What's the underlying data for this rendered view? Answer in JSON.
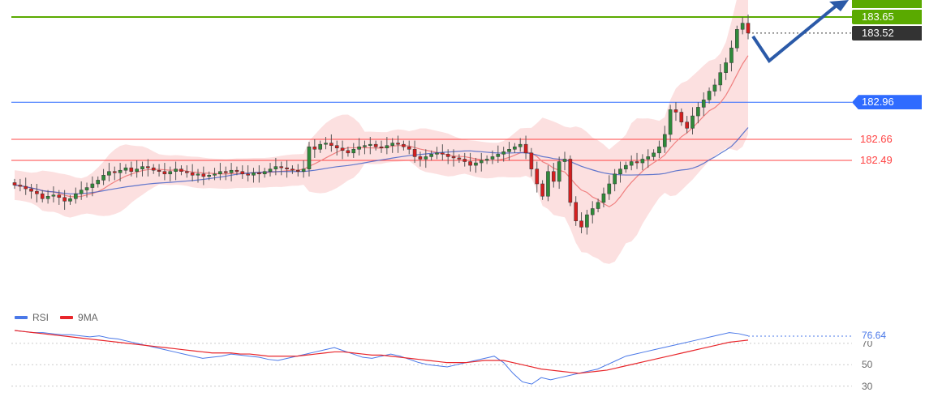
{
  "chart_data": [
    {
      "type": "candlestick",
      "title": "",
      "y_range": [
        181.0,
        183.75
      ],
      "levels": [
        {
          "name": "resistance",
          "value": 183.65,
          "label": "183.65",
          "color": "#5aaa00"
        },
        {
          "name": "current",
          "value": 183.52,
          "label": "183.52",
          "color": "#333333"
        },
        {
          "name": "pivot",
          "value": 182.96,
          "label": "182.96",
          "color": "#2f6bff"
        },
        {
          "name": "support1",
          "value": 182.66,
          "label": "182.66",
          "color": "#ff4444"
        },
        {
          "name": "support2",
          "value": 182.49,
          "label": "182.49",
          "color": "#ff4444"
        }
      ],
      "close_series": [
        182.29,
        182.28,
        182.26,
        182.24,
        182.22,
        182.18,
        182.2,
        182.21,
        182.19,
        182.16,
        182.18,
        182.22,
        182.25,
        182.27,
        182.3,
        182.33,
        182.37,
        182.4,
        182.39,
        182.41,
        182.43,
        182.4,
        182.42,
        182.44,
        182.43,
        182.41,
        182.4,
        182.38,
        182.4,
        182.42,
        182.4,
        182.39,
        182.37,
        182.38,
        182.36,
        182.37,
        182.38,
        182.4,
        182.39,
        182.41,
        182.4,
        182.38,
        182.37,
        182.39,
        182.38,
        182.4,
        182.42,
        182.44,
        182.43,
        182.42,
        182.41,
        182.4,
        182.42,
        182.6,
        182.58,
        182.62,
        182.63,
        182.61,
        182.59,
        182.57,
        182.55,
        182.58,
        182.6,
        182.61,
        182.62,
        182.6,
        182.59,
        182.61,
        182.63,
        182.62,
        182.6,
        182.58,
        182.52,
        182.5,
        182.52,
        182.54,
        182.55,
        182.54,
        182.52,
        182.51,
        182.5,
        182.48,
        182.45,
        182.47,
        182.49,
        182.5,
        182.52,
        182.54,
        182.56,
        182.58,
        182.6,
        182.62,
        182.55,
        182.42,
        182.3,
        182.2,
        182.4,
        182.32,
        182.48,
        182.5,
        182.15,
        182.0,
        181.95,
        182.05,
        182.1,
        182.15,
        182.22,
        182.3,
        182.38,
        182.42,
        182.45,
        182.48,
        182.47,
        182.5,
        182.52,
        182.55,
        182.6,
        182.7,
        182.9,
        182.88,
        182.8,
        182.75,
        182.85,
        182.92,
        182.98,
        183.05,
        183.1,
        183.2,
        183.28,
        183.4,
        183.55,
        183.6,
        183.52
      ],
      "ma_fast_label": "",
      "ma_slow_label": ""
    },
    {
      "type": "line",
      "title": "",
      "legend": [
        {
          "name": "RSI",
          "color": "#4a78e8"
        },
        {
          "name": "9MA",
          "color": "#e8262b"
        }
      ],
      "y_ticks": [
        {
          "value": 70,
          "label": "70"
        },
        {
          "value": 50,
          "label": "50"
        },
        {
          "value": 30,
          "label": "30"
        }
      ],
      "current_value": 76.64,
      "current_label": "76.64",
      "rsi_series": [
        82,
        81,
        80,
        80,
        79,
        78,
        78,
        77,
        76,
        77,
        75,
        74,
        72,
        70,
        68,
        66,
        64,
        62,
        60,
        58,
        56,
        57,
        58,
        60,
        59,
        58,
        57,
        55,
        54,
        56,
        58,
        60,
        62,
        64,
        66,
        63,
        60,
        57,
        56,
        58,
        60,
        58,
        55,
        52,
        50,
        49,
        48,
        50,
        52,
        54,
        56,
        58,
        52,
        42,
        34,
        32,
        38,
        36,
        38,
        40,
        42,
        44,
        46,
        50,
        54,
        58,
        60,
        62,
        64,
        66,
        68,
        70,
        72,
        74,
        76,
        78,
        80,
        79,
        77
      ],
      "ma_series": [
        82,
        81,
        80,
        79,
        78,
        77,
        76,
        75,
        74,
        73,
        72,
        71,
        70,
        69,
        68,
        67,
        66,
        65,
        64,
        63,
        62,
        61,
        61,
        61,
        60,
        60,
        59,
        58,
        58,
        58,
        58,
        59,
        60,
        61,
        62,
        62,
        61,
        60,
        59,
        59,
        58,
        57,
        56,
        55,
        54,
        53,
        52,
        52,
        52,
        53,
        54,
        54,
        54,
        52,
        50,
        48,
        46,
        45,
        44,
        43,
        42,
        43,
        44,
        45,
        47,
        49,
        51,
        53,
        55,
        57,
        59,
        61,
        63,
        65,
        67,
        69,
        71,
        72,
        73
      ]
    }
  ]
}
